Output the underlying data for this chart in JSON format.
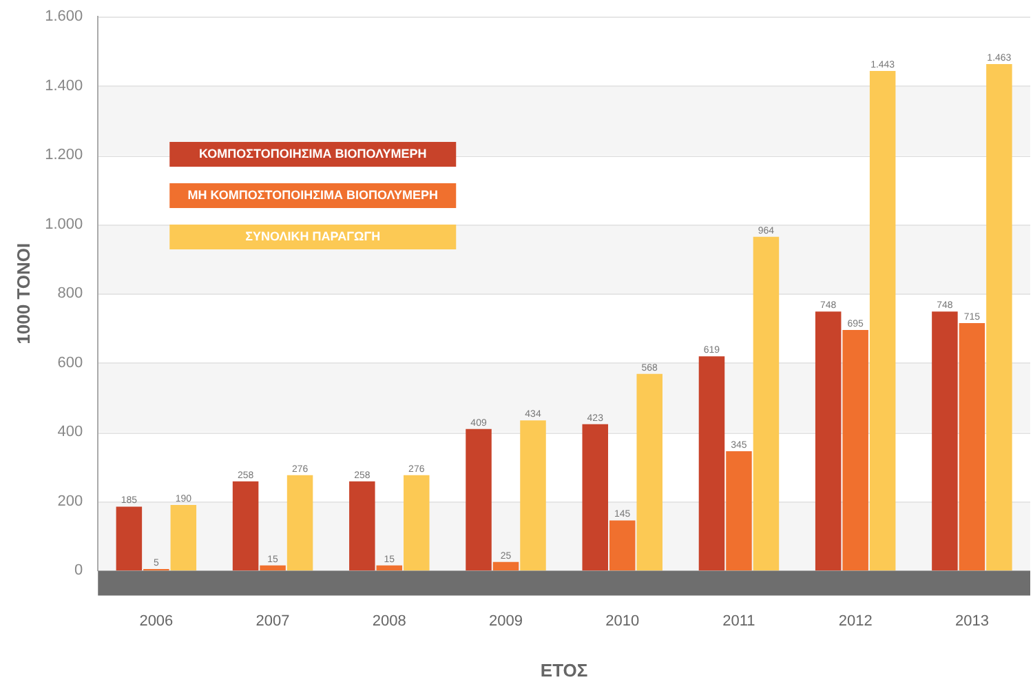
{
  "chart_data": {
    "type": "bar",
    "xlabel": "ΕΤΟΣ",
    "ylabel": "1000 ΤΟΝΟΙ",
    "categories": [
      "2006",
      "2007",
      "2008",
      "2009",
      "2010",
      "2011",
      "2012",
      "2013"
    ],
    "series": [
      {
        "name": "ΚΟΜΠΟΣΤΟΠΟΙΗΣΙΜΑ ΒΙΟΠΟΛΥΜΕΡΗ",
        "color": "#c8432a",
        "values": [
          185,
          258,
          258,
          409,
          423,
          619,
          748,
          748
        ],
        "value_labels": [
          "185",
          "258",
          "258",
          "409",
          "423",
          "619",
          "748",
          "748"
        ]
      },
      {
        "name": "ΜΗ ΚΟΜΠΟΣΤΟΠΟΙΗΣΙΜΑ ΒΙΟΠΟΛΥΜΕΡΗ",
        "color": "#f0702e",
        "values": [
          5,
          15,
          15,
          25,
          145,
          345,
          695,
          715
        ],
        "value_labels": [
          "5",
          "15",
          "15",
          "25",
          "145",
          "345",
          "695",
          "715"
        ]
      },
      {
        "name": "ΣΥΝΟΛΙΚΗ ΠΑΡΑΓΩΓΗ",
        "color": "#fcc954",
        "values": [
          190,
          276,
          276,
          434,
          568,
          964,
          1443,
          1463
        ],
        "value_labels": [
          "190",
          "276",
          "276",
          "434",
          "568",
          "964",
          "1.443",
          "1.463"
        ]
      }
    ],
    "ylim": [
      0,
      1600
    ],
    "yticks": [
      0,
      200,
      400,
      600,
      800,
      {
        "value": 1000,
        "label": "1.000"
      },
      {
        "value": 1200,
        "label": "1.200"
      },
      {
        "value": 1400,
        "label": "1.400"
      },
      {
        "value": 1600,
        "label": "1.600"
      }
    ],
    "grid": "y",
    "legend": "top left"
  }
}
